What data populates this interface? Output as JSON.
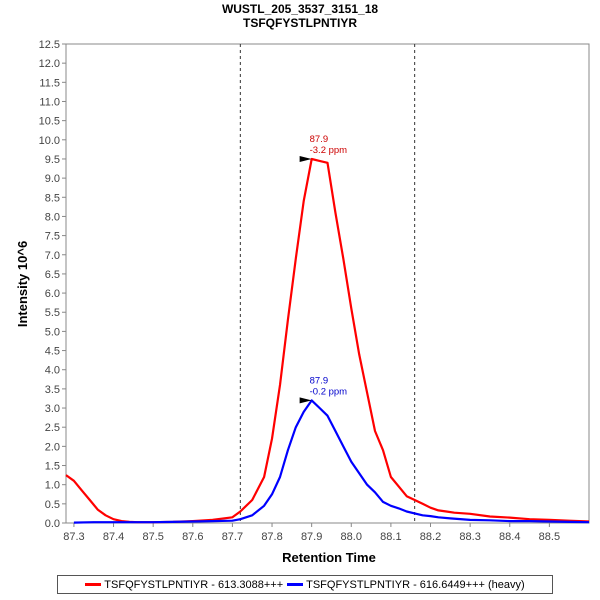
{
  "chart_data": {
    "type": "line",
    "title": "WUSTL_205_3537_3151_18",
    "subtitle": "TSFQFYSTLPNTIYR",
    "xlabel": "Retention Time",
    "ylabel": "Intensity 10^6",
    "xlim": [
      87.28,
      88.6
    ],
    "ylim": [
      0,
      12.5
    ],
    "x_ticks": [
      "87.3",
      "87.4",
      "87.5",
      "87.6",
      "87.7",
      "87.8",
      "87.9",
      "88.0",
      "88.1",
      "88.2",
      "88.3",
      "88.4",
      "88.5"
    ],
    "y_ticks": [
      "0.0",
      "0.5",
      "1.0",
      "1.5",
      "2.0",
      "2.5",
      "3.0",
      "3.5",
      "4.0",
      "4.5",
      "5.0",
      "5.5",
      "6.0",
      "6.5",
      "7.0",
      "7.5",
      "8.0",
      "8.5",
      "9.0",
      "9.5",
      "10.0",
      "10.5",
      "11.0",
      "11.5",
      "12.0",
      "12.5"
    ],
    "integration_bounds": [
      87.72,
      88.16
    ],
    "grid": false,
    "legend_position": "bottom",
    "series": [
      {
        "name": "TSFQFYSTLPNTIYR - 613.3088+++",
        "color": "#ff0000",
        "x": [
          87.28,
          87.3,
          87.32,
          87.34,
          87.36,
          87.38,
          87.4,
          87.42,
          87.44,
          87.46,
          87.5,
          87.55,
          87.6,
          87.65,
          87.7,
          87.72,
          87.75,
          87.78,
          87.8,
          87.82,
          87.84,
          87.86,
          87.88,
          87.9,
          87.92,
          87.94,
          87.96,
          87.98,
          88.0,
          88.02,
          88.04,
          88.06,
          88.08,
          88.1,
          88.12,
          88.14,
          88.16,
          88.18,
          88.2,
          88.22,
          88.24,
          88.26,
          88.3,
          88.35,
          88.4,
          88.45,
          88.5,
          88.55,
          88.6
        ],
        "y": [
          1.25,
          1.1,
          0.85,
          0.6,
          0.35,
          0.2,
          0.1,
          0.05,
          0.03,
          0.02,
          0.02,
          0.03,
          0.05,
          0.08,
          0.15,
          0.3,
          0.6,
          1.2,
          2.2,
          3.6,
          5.3,
          6.9,
          8.4,
          9.5,
          9.45,
          9.4,
          8.1,
          6.9,
          5.6,
          4.4,
          3.4,
          2.4,
          1.9,
          1.2,
          0.95,
          0.7,
          0.6,
          0.5,
          0.4,
          0.33,
          0.3,
          0.27,
          0.24,
          0.17,
          0.14,
          0.1,
          0.08,
          0.06,
          0.04
        ]
      },
      {
        "name": "TSFQFYSTLPNTIYR - 616.6449+++ (heavy)",
        "color": "#0000ff",
        "x": [
          87.3,
          87.35,
          87.4,
          87.45,
          87.5,
          87.55,
          87.6,
          87.65,
          87.7,
          87.72,
          87.75,
          87.78,
          87.8,
          87.82,
          87.84,
          87.86,
          87.88,
          87.9,
          87.92,
          87.94,
          87.96,
          87.98,
          88.0,
          88.02,
          88.04,
          88.06,
          88.08,
          88.1,
          88.12,
          88.14,
          88.16,
          88.18,
          88.2,
          88.22,
          88.25,
          88.3,
          88.35,
          88.4,
          88.45,
          88.5,
          88.55,
          88.6
        ],
        "y": [
          0.01,
          0.02,
          0.02,
          0.02,
          0.02,
          0.03,
          0.04,
          0.05,
          0.06,
          0.1,
          0.2,
          0.45,
          0.75,
          1.2,
          1.9,
          2.5,
          2.9,
          3.2,
          3.0,
          2.8,
          2.4,
          2.0,
          1.6,
          1.3,
          1.0,
          0.8,
          0.55,
          0.45,
          0.38,
          0.3,
          0.25,
          0.2,
          0.18,
          0.15,
          0.12,
          0.08,
          0.07,
          0.05,
          0.05,
          0.04,
          0.03,
          0.02
        ]
      }
    ],
    "annotations": [
      {
        "series": 0,
        "x": 87.91,
        "y": 9.5,
        "lines": [
          "87.9",
          "-3.2 ppm"
        ],
        "color": "#cc0000"
      },
      {
        "series": 1,
        "x": 87.91,
        "y": 3.2,
        "lines": [
          "87.9",
          "-0.2 ppm"
        ],
        "color": "#0000cc"
      }
    ]
  }
}
